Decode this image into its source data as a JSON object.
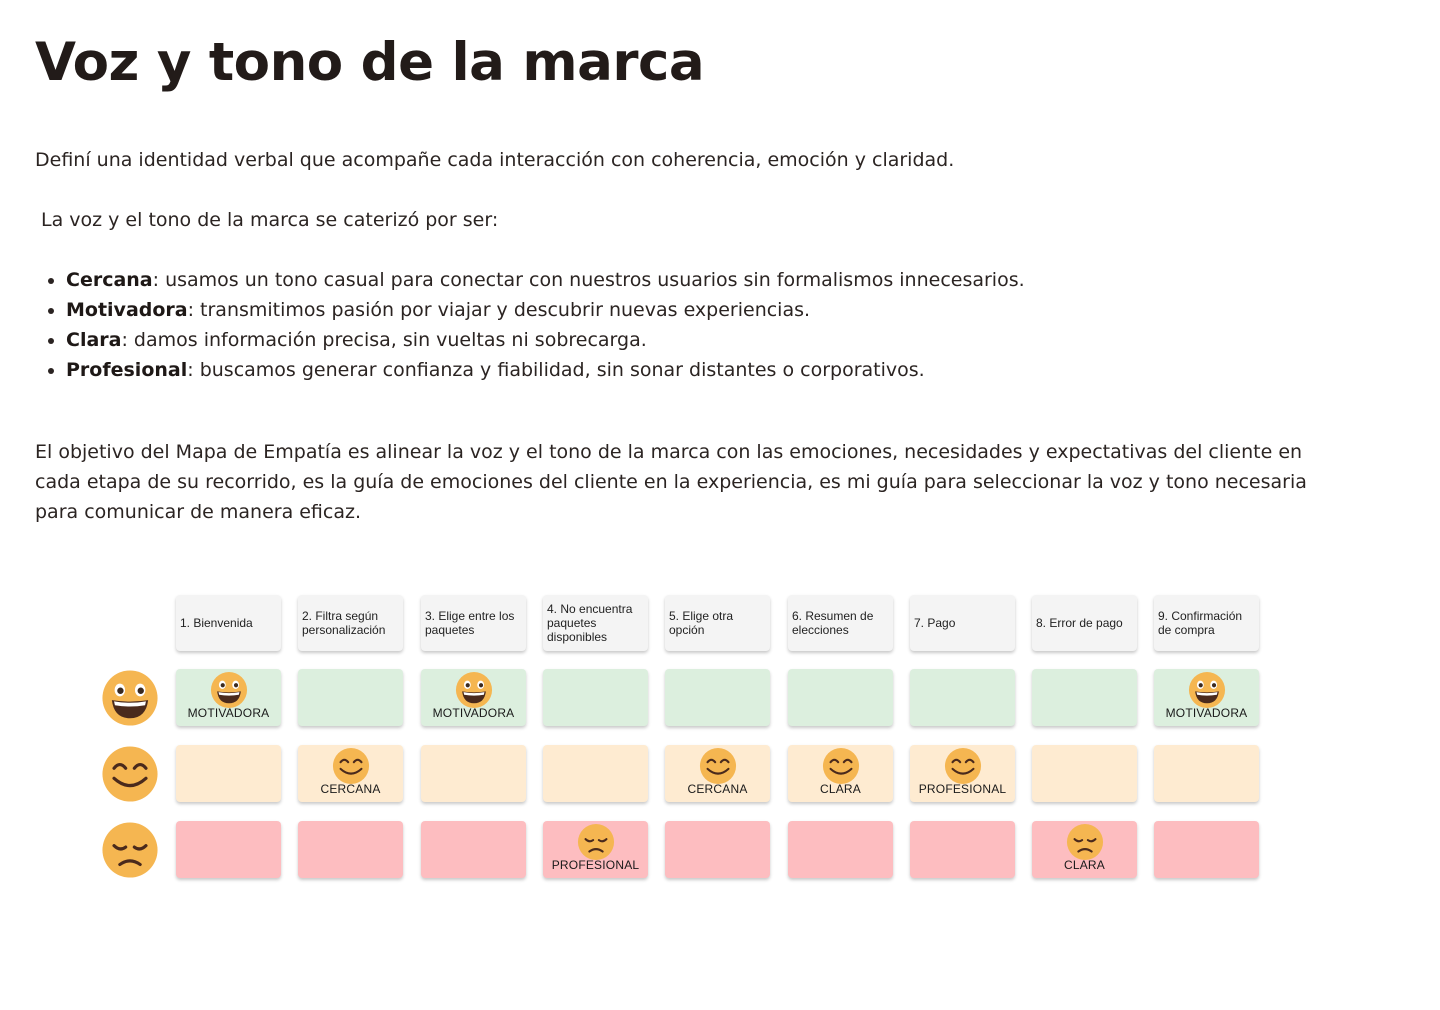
{
  "title": "Voz y tono de la marca",
  "intro": "Definí una identidad verbal que acompañe cada interacción con coherencia, emoción y claridad.",
  "subtitle": "La voz y el tono de la marca se caterizó por ser:",
  "traits": [
    {
      "name": "Cercana",
      "desc": ": usamos un tono casual para conectar con nuestros usuarios sin formalismos innecesarios."
    },
    {
      "name": "Motivadora",
      "desc": ": transmitimos pasión por viajar y descubrir nuevas experiencias."
    },
    {
      "name": "Clara",
      "desc": ": damos información precisa, sin vueltas ni sobrecarga."
    },
    {
      "name": "Profesional",
      "desc": ": buscamos generar confianza y fiabilidad, sin sonar distantes o corporativos."
    }
  ],
  "paragraph": "El objetivo del Mapa de Empatía es alinear la voz y el tono de la marca con las emociones, necesidades y expectativas del cliente en cada etapa de su recorrido, es la guía de emociones del cliente en la experiencia, es mi guía para seleccionar la voz y tono necesaria para comunicar de manera eficaz.",
  "empathy_map": {
    "colors": {
      "header": "#f4f4f4",
      "happy_row": "#dcefde",
      "smile_row": "#feebd1",
      "sad_row": "#fdbdc0",
      "emoji_face": "#f5b651"
    },
    "rows": [
      {
        "emotion": "grinning-face-icon"
      },
      {
        "emotion": "smiling-face-icon"
      },
      {
        "emotion": "disappointed-face-icon"
      }
    ],
    "stages": [
      {
        "label": "1. Bienvenida",
        "happy": "MOTIVADORA",
        "smile": "",
        "sad": ""
      },
      {
        "label": "2. Filtra según personalización",
        "happy": "",
        "smile": "CERCANA",
        "sad": ""
      },
      {
        "label": "3. Elige entre los paquetes",
        "happy": "MOTIVADORA",
        "smile": "",
        "sad": ""
      },
      {
        "label": "4. No encuentra paquetes disponibles",
        "happy": "",
        "smile": "",
        "sad": "PROFESIONAL"
      },
      {
        "label": "5. Elige otra opción",
        "happy": "",
        "smile": "CERCANA",
        "sad": ""
      },
      {
        "label": "6. Resumen de elecciones",
        "happy": "",
        "smile": "CLARA",
        "sad": ""
      },
      {
        "label": "7. Pago",
        "happy": "",
        "smile": "PROFESIONAL",
        "sad": ""
      },
      {
        "label": "8. Error de pago",
        "happy": "",
        "smile": "",
        "sad": "CLARA"
      },
      {
        "label": "9. Confirmación de compra",
        "happy": "MOTIVADORA",
        "smile": "",
        "sad": ""
      }
    ]
  }
}
